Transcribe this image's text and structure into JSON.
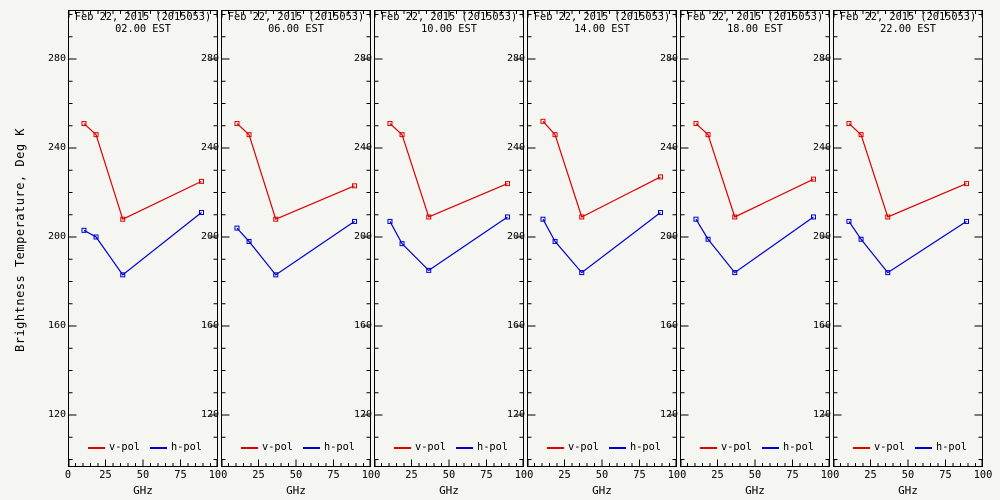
{
  "figure": {
    "background": "#f5f5f2",
    "axis_color": "#000000"
  },
  "chart_data": {
    "type": "line",
    "ylabel": "Brightness Temperature, Deg K",
    "xlabel": "GHz",
    "legend": [
      "v-pol",
      "h-pol"
    ],
    "series_colors": {
      "v-pol": "#dd0000",
      "h-pol": "#0000cc"
    },
    "x": [
      10.65,
      18.7,
      36.5,
      89.0
    ],
    "xlim": [
      0,
      100
    ],
    "ylim": [
      97,
      302
    ],
    "x_ticks": [
      0,
      25,
      50,
      75,
      100
    ],
    "y_ticks": [
      280,
      240,
      200,
      160,
      120
    ],
    "grid": false,
    "legend_position": "bottom-inside",
    "panels": [
      {
        "title_line1": "Feb 22, 2015 (2015053)",
        "title_line2": "02.00 EST",
        "series": [
          {
            "name": "v-pol",
            "color": "#dd0000",
            "values": [
              251,
              246,
              208,
              225
            ]
          },
          {
            "name": "h-pol",
            "color": "#0000cc",
            "values": [
              203,
              200,
              183,
              211
            ]
          }
        ]
      },
      {
        "title_line1": "Feb 22, 2015 (2015053)",
        "title_line2": "06.00 EST",
        "series": [
          {
            "name": "v-pol",
            "color": "#dd0000",
            "values": [
              251,
              246,
              208,
              223
            ]
          },
          {
            "name": "h-pol",
            "color": "#0000cc",
            "values": [
              204,
              198,
              183,
              207
            ]
          }
        ]
      },
      {
        "title_line1": "Feb 22, 2015 (2015053)",
        "title_line2": "10.00 EST",
        "series": [
          {
            "name": "v-pol",
            "color": "#dd0000",
            "values": [
              251,
              246,
              209,
              224
            ]
          },
          {
            "name": "h-pol",
            "color": "#0000cc",
            "values": [
              207,
              197,
              185,
              209
            ]
          }
        ]
      },
      {
        "title_line1": "Feb 22, 2015 (2015053)",
        "title_line2": "14.00 EST",
        "series": [
          {
            "name": "v-pol",
            "color": "#dd0000",
            "values": [
              252,
              246,
              209,
              227
            ]
          },
          {
            "name": "h-pol",
            "color": "#0000cc",
            "values": [
              208,
              198,
              184,
              211
            ]
          }
        ]
      },
      {
        "title_line1": "Feb 22, 2015 (2015053)",
        "title_line2": "18.00 EST",
        "series": [
          {
            "name": "v-pol",
            "color": "#dd0000",
            "values": [
              251,
              246,
              209,
              226
            ]
          },
          {
            "name": "h-pol",
            "color": "#0000cc",
            "values": [
              208,
              199,
              184,
              209
            ]
          }
        ]
      },
      {
        "title_line1": "Feb 22, 2015 (2015053)",
        "title_line2": "22.00 EST",
        "series": [
          {
            "name": "v-pol",
            "color": "#dd0000",
            "values": [
              251,
              246,
              209,
              224
            ]
          },
          {
            "name": "h-pol",
            "color": "#0000cc",
            "values": [
              207,
              199,
              184,
              207
            ]
          }
        ]
      }
    ]
  }
}
